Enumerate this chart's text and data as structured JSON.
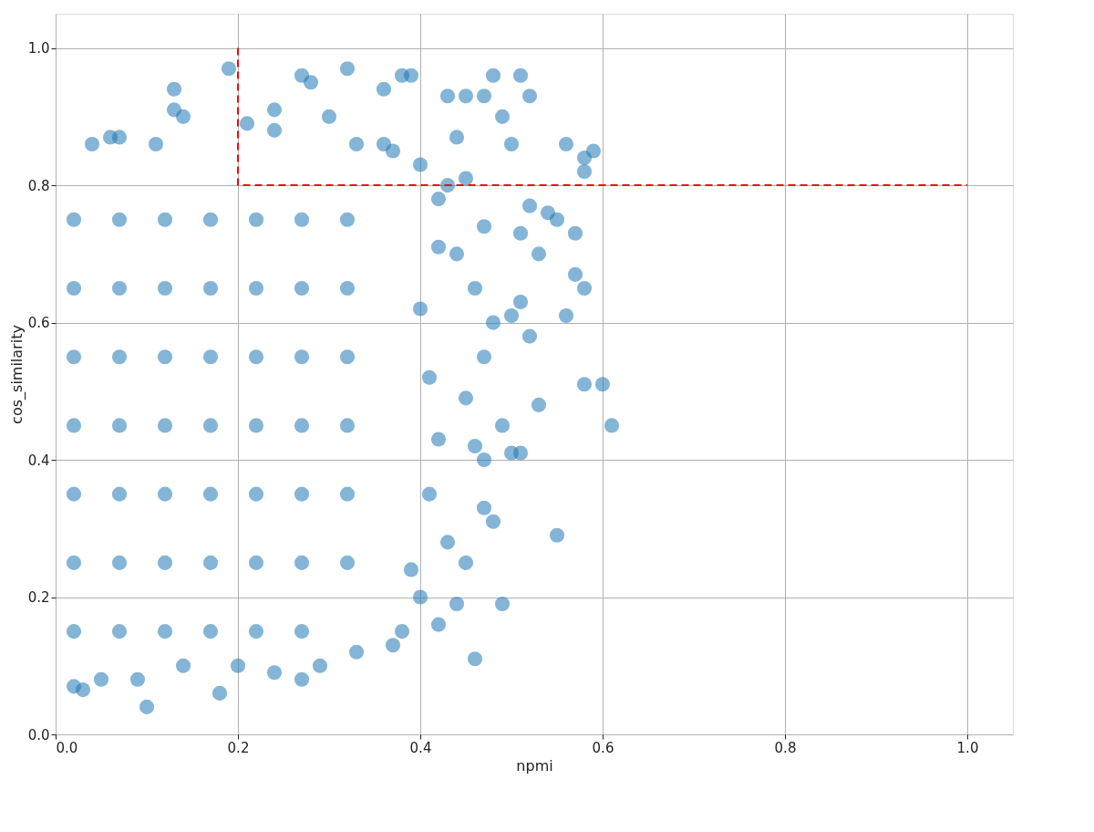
{
  "chart_data": {
    "type": "scatter",
    "xlabel": "npmi",
    "ylabel": "cos_similarity",
    "xlim": [
      0,
      1.05
    ],
    "ylim": [
      0,
      1.05
    ],
    "xticks": [
      {
        "value": 0,
        "label": "0.0"
      },
      0.2,
      0.4,
      0.6,
      0.8,
      {
        "value": 1,
        "label": "1.0"
      }
    ],
    "yticks": [
      {
        "value": 0,
        "label": "0.0"
      },
      0.2,
      0.4,
      0.6,
      0.8,
      {
        "value": 1,
        "label": "1.0"
      }
    ],
    "grid": true,
    "marker": "circle",
    "series": [
      {
        "color": "#1f77b4",
        "x": [
          0.19,
          0.32,
          0.27,
          0.28,
          0.38,
          0.39,
          0.48,
          0.51,
          0.13,
          0.36,
          0.43,
          0.45,
          0.47,
          0.52,
          0.13,
          0.24,
          0.14,
          0.3,
          0.37,
          0.49,
          0.06,
          0.07,
          0.04,
          0.11,
          0.21,
          0.24,
          0.33,
          0.44,
          0.5,
          0.56,
          0.59,
          0.58,
          0.58,
          0.52,
          0.54,
          0.55,
          0.57,
          0.51,
          0.53,
          0.57,
          0.58,
          0.56,
          0.51,
          0.5,
          0.52,
          0.6,
          0.58,
          0.61,
          0.53,
          0.49,
          0.5,
          0.51,
          0.47,
          0.55,
          0.49,
          0.46,
          0.44,
          0.42,
          0.45,
          0.43,
          0.47,
          0.48,
          0.46,
          0.45,
          0.47,
          0.48,
          0.46,
          0.44,
          0.47,
          0.42,
          0.45,
          0.43,
          0.4,
          0.36,
          0.4,
          0.38,
          0.39,
          0.41,
          0.42,
          0.41,
          0.4,
          0.42,
          0.37,
          0.33,
          0.29,
          0.27,
          0.24,
          0.18,
          0.1,
          0.09,
          0.02,
          0.03,
          0.05,
          0.14,
          0.2,
          0.02,
          0.02,
          0.02,
          0.02,
          0.02,
          0.02,
          0.02,
          0.07,
          0.07,
          0.07,
          0.07,
          0.07,
          0.07,
          0.07,
          0.12,
          0.12,
          0.12,
          0.12,
          0.12,
          0.12,
          0.12,
          0.17,
          0.17,
          0.17,
          0.17,
          0.17,
          0.17,
          0.17,
          0.22,
          0.22,
          0.22,
          0.22,
          0.22,
          0.22,
          0.22,
          0.27,
          0.27,
          0.27,
          0.27,
          0.27,
          0.27,
          0.27,
          0.32,
          0.32,
          0.32,
          0.32,
          0.32,
          0.32
        ],
        "values": [
          0.97,
          0.97,
          0.96,
          0.95,
          0.96,
          0.96,
          0.96,
          0.96,
          0.94,
          0.94,
          0.93,
          0.93,
          0.93,
          0.93,
          0.91,
          0.91,
          0.9,
          0.9,
          0.85,
          0.9,
          0.87,
          0.87,
          0.86,
          0.86,
          0.89,
          0.88,
          0.86,
          0.87,
          0.86,
          0.86,
          0.85,
          0.84,
          0.82,
          0.77,
          0.76,
          0.75,
          0.73,
          0.73,
          0.7,
          0.67,
          0.65,
          0.61,
          0.63,
          0.61,
          0.58,
          0.51,
          0.51,
          0.45,
          0.48,
          0.45,
          0.41,
          0.41,
          0.4,
          0.29,
          0.19,
          0.11,
          0.19,
          0.16,
          0.25,
          0.28,
          0.33,
          0.31,
          0.42,
          0.49,
          0.55,
          0.6,
          0.65,
          0.7,
          0.74,
          0.78,
          0.81,
          0.8,
          0.83,
          0.86,
          0.2,
          0.15,
          0.24,
          0.35,
          0.43,
          0.52,
          0.62,
          0.71,
          0.13,
          0.12,
          0.1,
          0.08,
          0.09,
          0.06,
          0.04,
          0.08,
          0.07,
          0.065,
          0.08,
          0.1,
          0.1,
          0.15,
          0.25,
          0.35,
          0.45,
          0.55,
          0.65,
          0.75,
          0.15,
          0.25,
          0.35,
          0.45,
          0.55,
          0.65,
          0.75,
          0.15,
          0.25,
          0.35,
          0.45,
          0.55,
          0.65,
          0.75,
          0.15,
          0.25,
          0.35,
          0.45,
          0.55,
          0.65,
          0.75,
          0.15,
          0.25,
          0.35,
          0.45,
          0.55,
          0.65,
          0.75,
          0.15,
          0.25,
          0.35,
          0.45,
          0.55,
          0.65,
          0.75,
          0.25,
          0.35,
          0.45,
          0.55,
          0.65,
          0.75
        ]
      },
      {
        "type": "line",
        "color": "#ff0000",
        "line_style": "dashed",
        "marker": "none",
        "x": [
          0.2,
          0.2,
          1.0
        ],
        "values": [
          1.0,
          0.8,
          0.8
        ]
      }
    ]
  }
}
